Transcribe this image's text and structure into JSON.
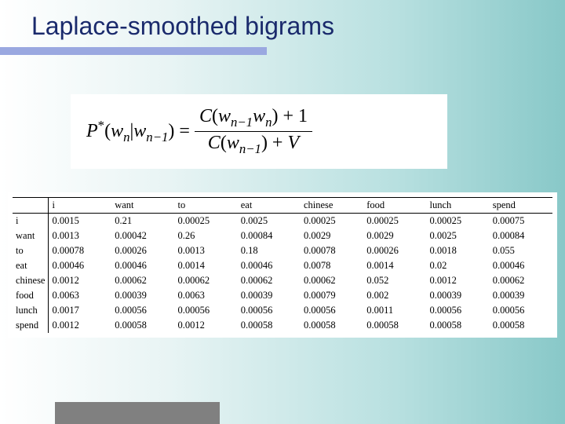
{
  "title": "Laplace-smoothed bigrams",
  "formula": {
    "lhs_P": "P",
    "lhs_star": "*",
    "lhs_open": "(",
    "lhs_w": "w",
    "lhs_n": "n",
    "lhs_bar": "|",
    "lhs_w2": "w",
    "lhs_nm1": "n−1",
    "lhs_close": ") = ",
    "num_C": "C",
    "num_open": "(",
    "num_w1": "w",
    "num_s1": "n−1",
    "num_w2": "w",
    "num_s2": "n",
    "num_close": ") + 1",
    "den_C": "C",
    "den_open": "(",
    "den_w": "w",
    "den_s": "n−1",
    "den_close": ") + ",
    "den_V": "V"
  },
  "table": {
    "columns": [
      "i",
      "want",
      "to",
      "eat",
      "chinese",
      "food",
      "lunch",
      "spend"
    ],
    "rowlabels": [
      "i",
      "want",
      "to",
      "eat",
      "chinese",
      "food",
      "lunch",
      "spend"
    ],
    "rows": [
      [
        "0.0015",
        "0.21",
        "0.00025",
        "0.0025",
        "0.00025",
        "0.00025",
        "0.00025",
        "0.00075"
      ],
      [
        "0.0013",
        "0.00042",
        "0.26",
        "0.00084",
        "0.0029",
        "0.0029",
        "0.0025",
        "0.00084"
      ],
      [
        "0.00078",
        "0.00026",
        "0.0013",
        "0.18",
        "0.00078",
        "0.00026",
        "0.0018",
        "0.055"
      ],
      [
        "0.00046",
        "0.00046",
        "0.0014",
        "0.00046",
        "0.0078",
        "0.0014",
        "0.02",
        "0.00046"
      ],
      [
        "0.0012",
        "0.00062",
        "0.00062",
        "0.00062",
        "0.00062",
        "0.052",
        "0.0012",
        "0.00062"
      ],
      [
        "0.0063",
        "0.00039",
        "0.0063",
        "0.00039",
        "0.00079",
        "0.002",
        "0.00039",
        "0.00039"
      ],
      [
        "0.0017",
        "0.00056",
        "0.00056",
        "0.00056",
        "0.00056",
        "0.0011",
        "0.00056",
        "0.00056"
      ],
      [
        "0.0012",
        "0.00058",
        "0.0012",
        "0.00058",
        "0.00058",
        "0.00058",
        "0.00058",
        "0.00058"
      ]
    ]
  },
  "styling": {
    "title_color": "#1a2a6c",
    "title_fontsize": 32,
    "underline_color": "#9aa8e0",
    "background_gradient": [
      "#ffffff",
      "#e8f4f4",
      "#b8e0e0",
      "#88c8c8"
    ],
    "table_fontsize": 12.5,
    "table_font": "Times New Roman",
    "formula_fontsize": 24,
    "bottom_bar_color": "#808080"
  }
}
